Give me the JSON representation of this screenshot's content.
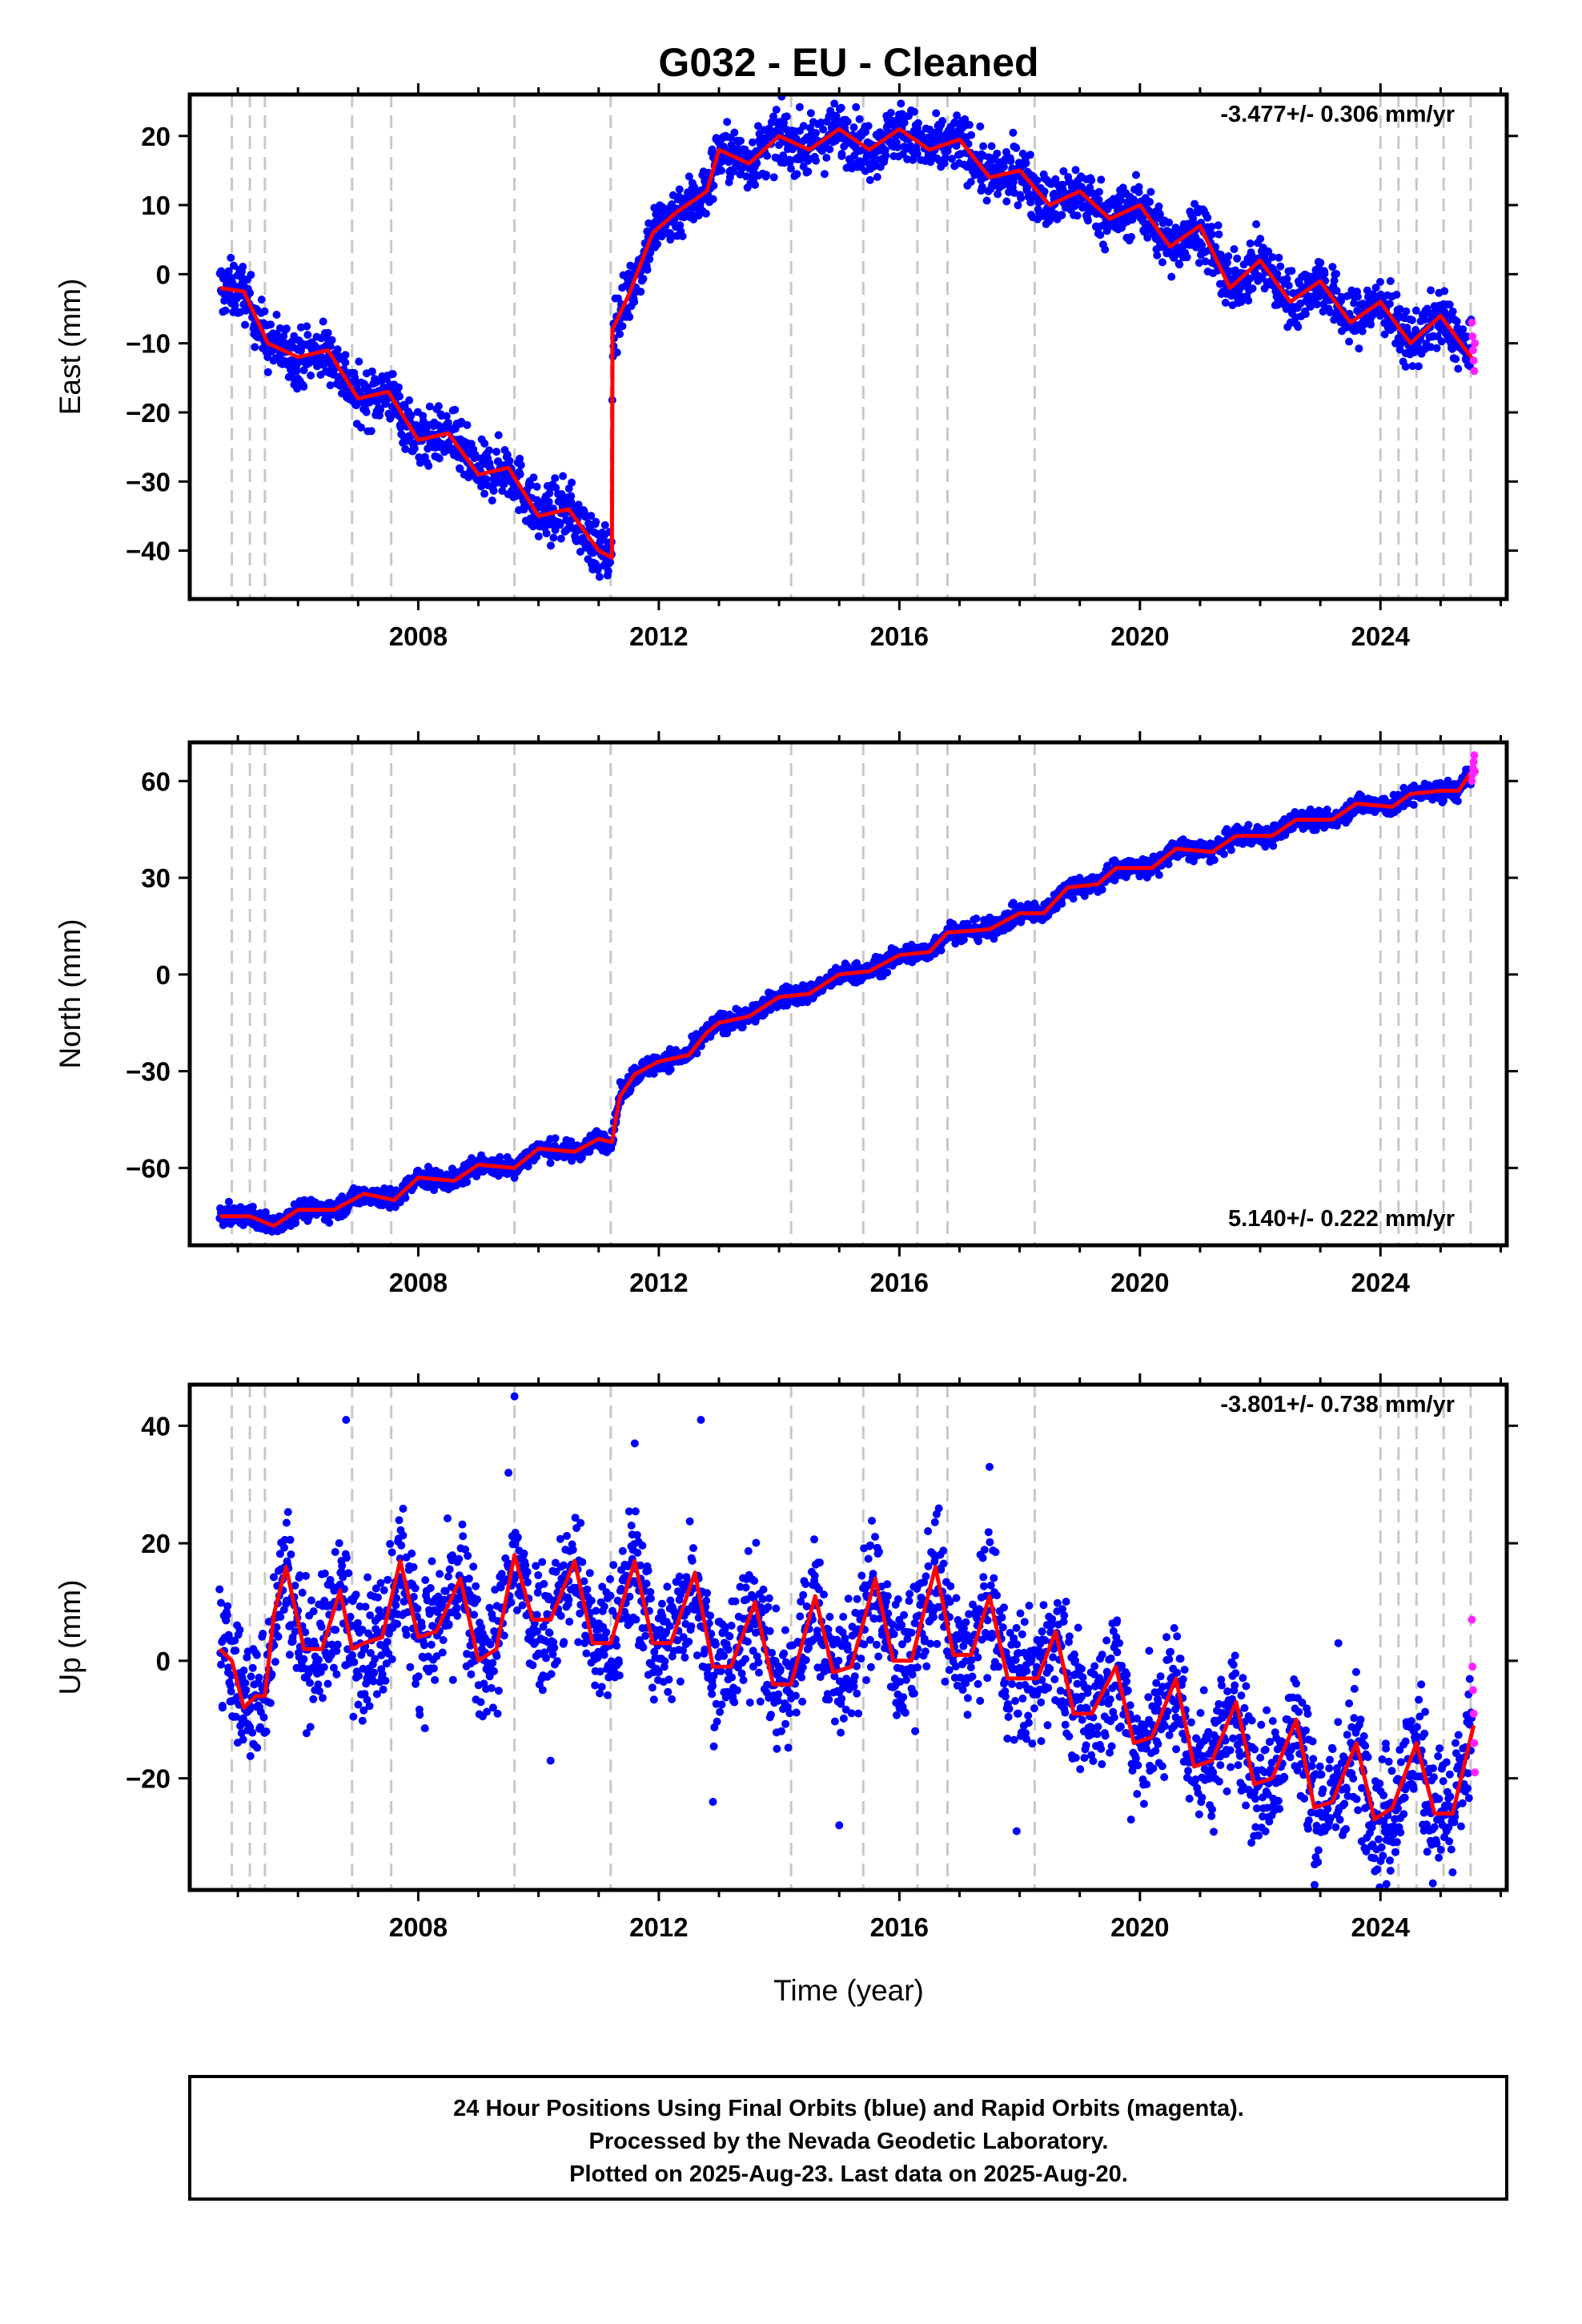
{
  "title": "G032  - EU - Cleaned",
  "xlabel": "Time (year)",
  "footer": [
    "24 Hour Positions Using Final Orbits (blue) and Rapid Orbits (magenta).",
    "Processed by the Nevada Geodetic Laboratory.",
    "Plotted on 2025-Aug-23. Last data on 2025-Aug-20."
  ],
  "colors": {
    "final": "#0000ff",
    "rapid": "#ff22ff",
    "model": "#ff0000",
    "event_line": "#c8c8c8"
  },
  "chart_data": [
    {
      "type": "scatter",
      "panel": "east",
      "ylabel": "East (mm)",
      "rate_label": "-3.477+/- 0.306 mm/yr",
      "rate_label_placement": "top-right",
      "xlim": [
        2004.2,
        2026.1
      ],
      "ylim": [
        -47,
        26
      ],
      "x_ticks": [
        2008,
        2012,
        2016,
        2020,
        2024
      ],
      "y_ticks": [
        20,
        10,
        0,
        -10,
        -20,
        -30,
        -40
      ],
      "event_lines": [
        2004.9,
        2005.2,
        2005.45,
        2006.9,
        2007.55,
        2009.6,
        2011.2,
        2014.2,
        2015.4,
        2016.3,
        2016.8,
        2018.25,
        2024.0,
        2024.3,
        2024.6,
        2025.05,
        2025.5
      ],
      "trend": [
        [
          2004.7,
          -2
        ],
        [
          2005.1,
          -2.5
        ],
        [
          2005.5,
          -10
        ],
        [
          2006.0,
          -12
        ],
        [
          2006.5,
          -11
        ],
        [
          2007.0,
          -18
        ],
        [
          2007.5,
          -17
        ],
        [
          2008.0,
          -24
        ],
        [
          2008.5,
          -23
        ],
        [
          2009.0,
          -29
        ],
        [
          2009.5,
          -28
        ],
        [
          2010.0,
          -35
        ],
        [
          2010.5,
          -34
        ],
        [
          2011.0,
          -40
        ],
        [
          2011.22,
          -41
        ],
        [
          2011.23,
          -8
        ],
        [
          2011.5,
          -3
        ],
        [
          2011.9,
          6
        ],
        [
          2012.3,
          9
        ],
        [
          2012.8,
          12
        ],
        [
          2013.0,
          18
        ],
        [
          2013.5,
          16
        ],
        [
          2014.0,
          20
        ],
        [
          2014.5,
          18
        ],
        [
          2015.0,
          21
        ],
        [
          2015.5,
          18
        ],
        [
          2016.0,
          21
        ],
        [
          2016.5,
          18
        ],
        [
          2017.0,
          19.5
        ],
        [
          2017.5,
          14
        ],
        [
          2018.0,
          15
        ],
        [
          2018.5,
          10
        ],
        [
          2019.0,
          12
        ],
        [
          2019.5,
          8
        ],
        [
          2020.0,
          10
        ],
        [
          2020.5,
          4
        ],
        [
          2021.0,
          7
        ],
        [
          2021.5,
          -2
        ],
        [
          2022.0,
          2
        ],
        [
          2022.5,
          -4
        ],
        [
          2023.0,
          -1
        ],
        [
          2023.5,
          -7
        ],
        [
          2024.0,
          -4
        ],
        [
          2024.5,
          -10
        ],
        [
          2025.0,
          -6
        ],
        [
          2025.55,
          -12.5
        ]
      ],
      "spread": 2.0,
      "outliers": [],
      "rapid_points": [
        [
          2025.52,
          -7
        ],
        [
          2025.53,
          -9
        ],
        [
          2025.54,
          -11
        ],
        [
          2025.55,
          -12.5
        ],
        [
          2025.56,
          -14
        ],
        [
          2025.57,
          -10
        ]
      ]
    },
    {
      "type": "scatter",
      "panel": "north",
      "ylabel": "North (mm)",
      "rate_label": "5.140+/- 0.222 mm/yr",
      "rate_label_placement": "bottom-right",
      "xlim": [
        2004.2,
        2026.1
      ],
      "ylim": [
        -84,
        72
      ],
      "x_ticks": [
        2008,
        2012,
        2016,
        2020,
        2024
      ],
      "y_ticks": [
        60,
        30,
        0,
        -30,
        -60
      ],
      "event_lines": [
        2004.9,
        2005.2,
        2005.45,
        2006.9,
        2007.55,
        2009.6,
        2011.2,
        2014.2,
        2015.4,
        2016.3,
        2016.8,
        2018.25,
        2024.0,
        2024.3,
        2024.6,
        2025.05,
        2025.5
      ],
      "trend": [
        [
          2004.7,
          -75
        ],
        [
          2005.2,
          -75
        ],
        [
          2005.6,
          -78
        ],
        [
          2006.0,
          -73
        ],
        [
          2006.6,
          -73
        ],
        [
          2007.1,
          -68
        ],
        [
          2007.6,
          -70
        ],
        [
          2008.0,
          -63
        ],
        [
          2008.6,
          -64
        ],
        [
          2009.0,
          -59
        ],
        [
          2009.6,
          -60
        ],
        [
          2010.0,
          -54
        ],
        [
          2010.6,
          -55
        ],
        [
          2011.0,
          -51
        ],
        [
          2011.22,
          -52
        ],
        [
          2011.35,
          -38
        ],
        [
          2011.6,
          -31
        ],
        [
          2012.0,
          -27
        ],
        [
          2012.5,
          -25
        ],
        [
          2012.8,
          -18
        ],
        [
          2013.0,
          -15
        ],
        [
          2013.5,
          -13
        ],
        [
          2014.0,
          -7
        ],
        [
          2014.5,
          -6
        ],
        [
          2015.0,
          0
        ],
        [
          2015.5,
          1
        ],
        [
          2016.0,
          6
        ],
        [
          2016.5,
          7
        ],
        [
          2016.8,
          13
        ],
        [
          2017.5,
          14
        ],
        [
          2018.0,
          19
        ],
        [
          2018.4,
          19
        ],
        [
          2018.8,
          27
        ],
        [
          2019.3,
          28
        ],
        [
          2019.6,
          33
        ],
        [
          2020.2,
          33
        ],
        [
          2020.6,
          39
        ],
        [
          2021.2,
          38
        ],
        [
          2021.6,
          43
        ],
        [
          2022.2,
          43
        ],
        [
          2022.6,
          48
        ],
        [
          2023.2,
          48
        ],
        [
          2023.6,
          53
        ],
        [
          2024.2,
          52
        ],
        [
          2024.5,
          56
        ],
        [
          2025.0,
          57
        ],
        [
          2025.3,
          57
        ],
        [
          2025.55,
          64
        ]
      ],
      "spread": 1.5,
      "outliers": [],
      "rapid_points": [
        [
          2025.52,
          60
        ],
        [
          2025.53,
          62
        ],
        [
          2025.54,
          64
        ],
        [
          2025.55,
          66
        ],
        [
          2025.56,
          68
        ],
        [
          2025.57,
          63
        ]
      ]
    },
    {
      "type": "scatter",
      "panel": "up",
      "ylabel": "Up (mm)",
      "rate_label": "-3.801+/- 0.738 mm/yr",
      "rate_label_placement": "top-right",
      "xlim": [
        2004.2,
        2026.1
      ],
      "ylim": [
        -39,
        47
      ],
      "x_ticks": [
        2008,
        2012,
        2016,
        2020,
        2024
      ],
      "y_ticks": [
        40,
        20,
        0,
        -20
      ],
      "event_lines": [
        2004.9,
        2005.2,
        2005.45,
        2006.9,
        2007.55,
        2009.6,
        2011.2,
        2014.2,
        2015.4,
        2016.3,
        2016.8,
        2018.25,
        2024.0,
        2024.3,
        2024.6,
        2025.05,
        2025.5
      ],
      "trend": [
        [
          2004.7,
          2
        ],
        [
          2004.9,
          0
        ],
        [
          2005.1,
          -8
        ],
        [
          2005.3,
          -6
        ],
        [
          2005.45,
          -6
        ],
        [
          2005.6,
          8
        ],
        [
          2005.8,
          16
        ],
        [
          2006.1,
          2
        ],
        [
          2006.4,
          2
        ],
        [
          2006.7,
          12
        ],
        [
          2006.9,
          2
        ],
        [
          2007.1,
          3
        ],
        [
          2007.4,
          4
        ],
        [
          2007.7,
          17
        ],
        [
          2008.0,
          4
        ],
        [
          2008.3,
          5
        ],
        [
          2008.7,
          14
        ],
        [
          2009.0,
          0
        ],
        [
          2009.3,
          2
        ],
        [
          2009.6,
          18
        ],
        [
          2009.9,
          7
        ],
        [
          2010.2,
          7
        ],
        [
          2010.6,
          17
        ],
        [
          2010.9,
          3
        ],
        [
          2011.2,
          3
        ],
        [
          2011.6,
          17
        ],
        [
          2011.9,
          3
        ],
        [
          2012.2,
          3
        ],
        [
          2012.6,
          15
        ],
        [
          2012.9,
          -1
        ],
        [
          2013.2,
          -1
        ],
        [
          2013.6,
          10
        ],
        [
          2013.9,
          -4
        ],
        [
          2014.2,
          -4
        ],
        [
          2014.6,
          11
        ],
        [
          2014.9,
          -2
        ],
        [
          2015.2,
          -1
        ],
        [
          2015.6,
          14
        ],
        [
          2015.9,
          0
        ],
        [
          2016.2,
          0
        ],
        [
          2016.6,
          16
        ],
        [
          2016.9,
          1
        ],
        [
          2017.2,
          1
        ],
        [
          2017.5,
          11
        ],
        [
          2017.8,
          -3
        ],
        [
          2018.1,
          -3
        ],
        [
          2018.3,
          -3
        ],
        [
          2018.6,
          5
        ],
        [
          2018.9,
          -9
        ],
        [
          2019.2,
          -9
        ],
        [
          2019.6,
          -1
        ],
        [
          2019.9,
          -14
        ],
        [
          2020.2,
          -13
        ],
        [
          2020.6,
          -3
        ],
        [
          2020.9,
          -18
        ],
        [
          2021.2,
          -17
        ],
        [
          2021.6,
          -7
        ],
        [
          2021.9,
          -21
        ],
        [
          2022.2,
          -20
        ],
        [
          2022.6,
          -10
        ],
        [
          2022.9,
          -25
        ],
        [
          2023.2,
          -24
        ],
        [
          2023.6,
          -14
        ],
        [
          2023.9,
          -27
        ],
        [
          2024.2,
          -25
        ],
        [
          2024.6,
          -14
        ],
        [
          2024.9,
          -26
        ],
        [
          2025.2,
          -26
        ],
        [
          2025.55,
          -11
        ]
      ],
      "spread": 5.5,
      "outliers": [
        [
          2006.8,
          41
        ],
        [
          2009.6,
          45
        ],
        [
          2012.7,
          41
        ],
        [
          2009.5,
          32
        ],
        [
          2011.6,
          37
        ],
        [
          2017.5,
          33
        ],
        [
          2023.3,
          3
        ],
        [
          2010.2,
          -17
        ],
        [
          2012.9,
          -24
        ],
        [
          2015.0,
          -28
        ],
        [
          2017.95,
          -29
        ],
        [
          2024.1,
          -38
        ],
        [
          2025.2,
          -36
        ]
      ],
      "rapid_points": [
        [
          2025.52,
          7
        ],
        [
          2025.53,
          -1
        ],
        [
          2025.54,
          -5
        ],
        [
          2025.55,
          -9
        ],
        [
          2025.56,
          -14
        ],
        [
          2025.57,
          -19
        ]
      ]
    }
  ]
}
